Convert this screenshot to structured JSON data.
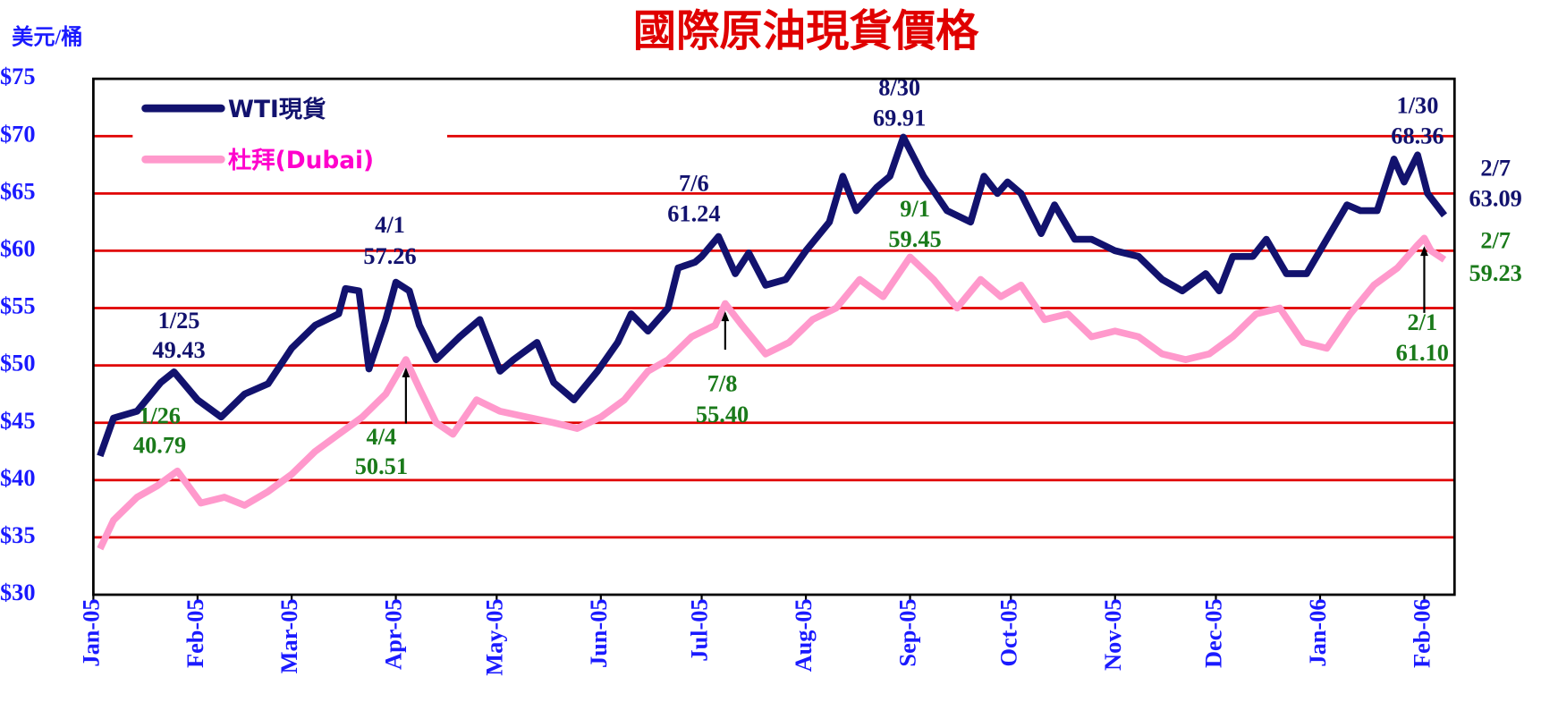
{
  "chart_data": {
    "type": "line",
    "title": "國際原油現貨價格",
    "ylabel": "美元/桶",
    "xlim": [
      "2005-01-01",
      "2006-02-10"
    ],
    "xticks": [
      {
        "value": "2005-01-01",
        "label": "Jan-05"
      },
      {
        "value": "2005-02-01",
        "label": "Feb-05"
      },
      {
        "value": "2005-03-01",
        "label": "Mar-05"
      },
      {
        "value": "2005-04-01",
        "label": "Apr-05"
      },
      {
        "value": "2005-05-01",
        "label": "May-05"
      },
      {
        "value": "2005-06-01",
        "label": "Jun-05"
      },
      {
        "value": "2005-07-01",
        "label": "Jul-05"
      },
      {
        "value": "2005-08-01",
        "label": "Aug-05"
      },
      {
        "value": "2005-09-01",
        "label": "Sep-05"
      },
      {
        "value": "2005-10-01",
        "label": "Oct-05"
      },
      {
        "value": "2005-11-01",
        "label": "Nov-05"
      },
      {
        "value": "2005-12-01",
        "label": "Dec-05"
      },
      {
        "value": "2006-01-01",
        "label": "Jan-06"
      },
      {
        "value": "2006-02-01",
        "label": "Feb-06"
      }
    ],
    "ylim": [
      30,
      75
    ],
    "yticks": [
      {
        "value": 30,
        "label": "$30"
      },
      {
        "value": 35,
        "label": "$35"
      },
      {
        "value": 40,
        "label": "$40"
      },
      {
        "value": 45,
        "label": "$45"
      },
      {
        "value": 50,
        "label": "$50"
      },
      {
        "value": 55,
        "label": "$55"
      },
      {
        "value": 60,
        "label": "$60"
      },
      {
        "value": 65,
        "label": "$65"
      },
      {
        "value": 70,
        "label": "$70"
      },
      {
        "value": 75,
        "label": "$75"
      }
    ],
    "grid": true,
    "grid_color": "#e00000",
    "legend": "upper left",
    "series": [
      {
        "name": "WTI現貨",
        "color": "#12126e",
        "x": [
          "2005-01-03",
          "2005-01-07",
          "2005-01-14",
          "2005-01-21",
          "2005-01-25",
          "2005-02-01",
          "2005-02-08",
          "2005-02-15",
          "2005-02-22",
          "2005-03-01",
          "2005-03-08",
          "2005-03-15",
          "2005-03-17",
          "2005-03-21",
          "2005-03-24",
          "2005-03-29",
          "2005-04-01",
          "2005-04-05",
          "2005-04-08",
          "2005-04-13",
          "2005-04-20",
          "2005-04-26",
          "2005-05-02",
          "2005-05-06",
          "2005-05-13",
          "2005-05-18",
          "2005-05-24",
          "2005-05-31",
          "2005-06-06",
          "2005-06-10",
          "2005-06-15",
          "2005-06-21",
          "2005-06-24",
          "2005-06-29",
          "2005-07-01",
          "2005-07-06",
          "2005-07-11",
          "2005-07-15",
          "2005-07-20",
          "2005-07-26",
          "2005-08-01",
          "2005-08-08",
          "2005-08-12",
          "2005-08-16",
          "2005-08-22",
          "2005-08-26",
          "2005-08-30",
          "2005-09-05",
          "2005-09-12",
          "2005-09-19",
          "2005-09-23",
          "2005-09-27",
          "2005-09-30",
          "2005-10-04",
          "2005-10-10",
          "2005-10-14",
          "2005-10-20",
          "2005-10-25",
          "2005-11-01",
          "2005-11-08",
          "2005-11-15",
          "2005-11-21",
          "2005-11-28",
          "2005-12-02",
          "2005-12-06",
          "2005-12-12",
          "2005-12-16",
          "2005-12-22",
          "2005-12-28",
          "2006-01-03",
          "2006-01-09",
          "2006-01-13",
          "2006-01-18",
          "2006-01-23",
          "2006-01-26",
          "2006-01-30",
          "2006-02-02",
          "2006-02-07"
        ],
        "values": [
          42.1,
          45.4,
          46.0,
          48.5,
          49.43,
          47.0,
          45.5,
          47.5,
          48.4,
          51.5,
          53.5,
          54.5,
          56.7,
          56.5,
          49.7,
          54.0,
          57.26,
          56.5,
          53.5,
          50.5,
          52.5,
          54.0,
          49.5,
          50.5,
          52.0,
          48.5,
          47.0,
          49.5,
          52.0,
          54.5,
          53.0,
          55.0,
          58.5,
          59.0,
          59.5,
          61.24,
          58.0,
          59.8,
          57.0,
          57.5,
          60.0,
          62.5,
          66.5,
          63.5,
          65.5,
          66.5,
          69.91,
          66.5,
          63.5,
          62.5,
          66.5,
          65.0,
          66.0,
          65.0,
          61.5,
          64.0,
          61.0,
          61.0,
          60.0,
          59.5,
          57.5,
          56.5,
          58.0,
          56.5,
          59.5,
          59.5,
          61.0,
          58.0,
          58.0,
          61.0,
          64.0,
          63.5,
          63.5,
          68.0,
          66.0,
          68.36,
          65.0,
          63.09
        ]
      },
      {
        "name": "杜拜(Dubai)",
        "color": "#ff99cc",
        "x": [
          "2005-01-03",
          "2005-01-07",
          "2005-01-14",
          "2005-01-20",
          "2005-01-26",
          "2005-02-02",
          "2005-02-09",
          "2005-02-15",
          "2005-02-22",
          "2005-03-01",
          "2005-03-08",
          "2005-03-15",
          "2005-03-22",
          "2005-03-29",
          "2005-04-04",
          "2005-04-08",
          "2005-04-13",
          "2005-04-18",
          "2005-04-25",
          "2005-05-02",
          "2005-05-10",
          "2005-05-18",
          "2005-05-25",
          "2005-06-01",
          "2005-06-08",
          "2005-06-15",
          "2005-06-21",
          "2005-06-28",
          "2005-07-05",
          "2005-07-08",
          "2005-07-13",
          "2005-07-20",
          "2005-07-27",
          "2005-08-03",
          "2005-08-10",
          "2005-08-17",
          "2005-08-24",
          "2005-09-01",
          "2005-09-08",
          "2005-09-15",
          "2005-09-22",
          "2005-09-28",
          "2005-10-04",
          "2005-10-11",
          "2005-10-18",
          "2005-10-25",
          "2005-11-01",
          "2005-11-08",
          "2005-11-15",
          "2005-11-22",
          "2005-11-29",
          "2005-12-06",
          "2005-12-13",
          "2005-12-20",
          "2005-12-27",
          "2006-01-03",
          "2006-01-10",
          "2006-01-17",
          "2006-01-24",
          "2006-01-30",
          "2006-02-01",
          "2006-02-03",
          "2006-02-07"
        ],
        "values": [
          34.0,
          36.5,
          38.5,
          39.5,
          40.79,
          38.0,
          38.5,
          37.8,
          39.0,
          40.5,
          42.5,
          44.0,
          45.5,
          47.5,
          50.51,
          48.0,
          45.0,
          44.0,
          47.0,
          46.0,
          45.5,
          45.0,
          44.5,
          45.5,
          47.0,
          49.5,
          50.5,
          52.5,
          53.5,
          55.4,
          53.5,
          51.0,
          52.0,
          54.0,
          55.0,
          57.5,
          56.0,
          59.45,
          57.5,
          55.0,
          57.5,
          56.0,
          57.0,
          54.0,
          54.5,
          52.5,
          53.0,
          52.5,
          51.0,
          50.5,
          51.0,
          52.5,
          54.5,
          55.0,
          52.0,
          51.5,
          54.5,
          57.0,
          58.5,
          60.5,
          61.1,
          60.0,
          59.23
        ]
      }
    ],
    "annotations": [
      {
        "label": "1/25",
        "x": "2005-01-25",
        "value": 49.43,
        "color": "#12126e",
        "arrow": false
      },
      {
        "label": "1/26",
        "x": "2005-01-26",
        "value": 40.79,
        "color": "#1a7a1a",
        "arrow": false
      },
      {
        "label": "4/1",
        "x": "2005-04-01",
        "value": 57.26,
        "color": "#12126e",
        "arrow": false
      },
      {
        "label": "4/4",
        "x": "2005-04-04",
        "value": 50.51,
        "color": "#1a7a1a",
        "arrow": true
      },
      {
        "label": "7/6",
        "x": "2005-07-06",
        "value": 61.24,
        "color": "#12126e",
        "arrow": false
      },
      {
        "label": "7/8",
        "x": "2005-07-08",
        "value": 55.4,
        "value_label": "55.40",
        "color": "#1a7a1a",
        "arrow": true
      },
      {
        "label": "8/30",
        "x": "2005-08-30",
        "value": 69.91,
        "color": "#12126e",
        "arrow": false
      },
      {
        "label": "9/1",
        "x": "2005-09-01",
        "value": 59.45,
        "color": "#1a7a1a",
        "arrow": false
      },
      {
        "label": "1/30",
        "x": "2006-01-30",
        "value": 68.36,
        "color": "#12126e",
        "arrow": false
      },
      {
        "label": "2/7",
        "x": "2006-02-07",
        "value": 63.09,
        "color": "#12126e",
        "arrow": false
      },
      {
        "label": "2/7",
        "x": "2006-02-07",
        "value": 59.23,
        "color": "#1a7a1a",
        "arrow": false
      },
      {
        "label": "2/1",
        "x": "2006-02-01",
        "value": 61.1,
        "value_label": "61.10",
        "color": "#1a7a1a",
        "arrow": true
      }
    ]
  }
}
